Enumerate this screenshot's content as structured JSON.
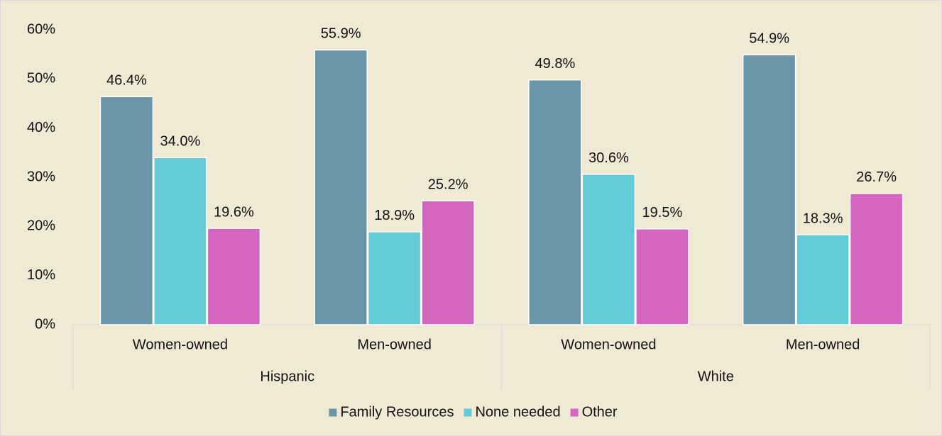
{
  "chart_data": {
    "type": "bar",
    "groups": [
      {
        "name": "Hispanic",
        "categories": [
          "Women-owned",
          "Men-owned"
        ]
      },
      {
        "name": "White",
        "categories": [
          "Women-owned",
          "Men-owned"
        ]
      }
    ],
    "series": [
      {
        "name": "Family Resources",
        "color": "#6a96a8",
        "values": [
          46.4,
          55.9,
          49.8,
          54.9
        ],
        "value_labels": [
          "46.4%",
          "55.9%",
          "49.8%",
          "54.9%"
        ]
      },
      {
        "name": "None needed",
        "color": "#63cbd8",
        "values": [
          34.0,
          18.9,
          30.6,
          18.3
        ],
        "value_labels": [
          "34.0%",
          "18.9%",
          "30.6%",
          "18.3%"
        ]
      },
      {
        "name": "Other",
        "color": "#d466c0",
        "values": [
          19.6,
          25.2,
          19.5,
          26.7
        ],
        "value_labels": [
          "19.6%",
          "25.2%",
          "19.5%",
          "26.7%"
        ]
      }
    ],
    "ylim": [
      0,
      60
    ],
    "yticks": [
      {
        "value": 0,
        "label": "0%"
      },
      {
        "value": 10,
        "label": "10%"
      },
      {
        "value": 20,
        "label": "20%"
      },
      {
        "value": 30,
        "label": "30%"
      },
      {
        "value": 40,
        "label": "40%"
      },
      {
        "value": 50,
        "label": "50%"
      },
      {
        "value": 60,
        "label": "60%"
      }
    ],
    "grid": false,
    "legend": "bottom"
  }
}
